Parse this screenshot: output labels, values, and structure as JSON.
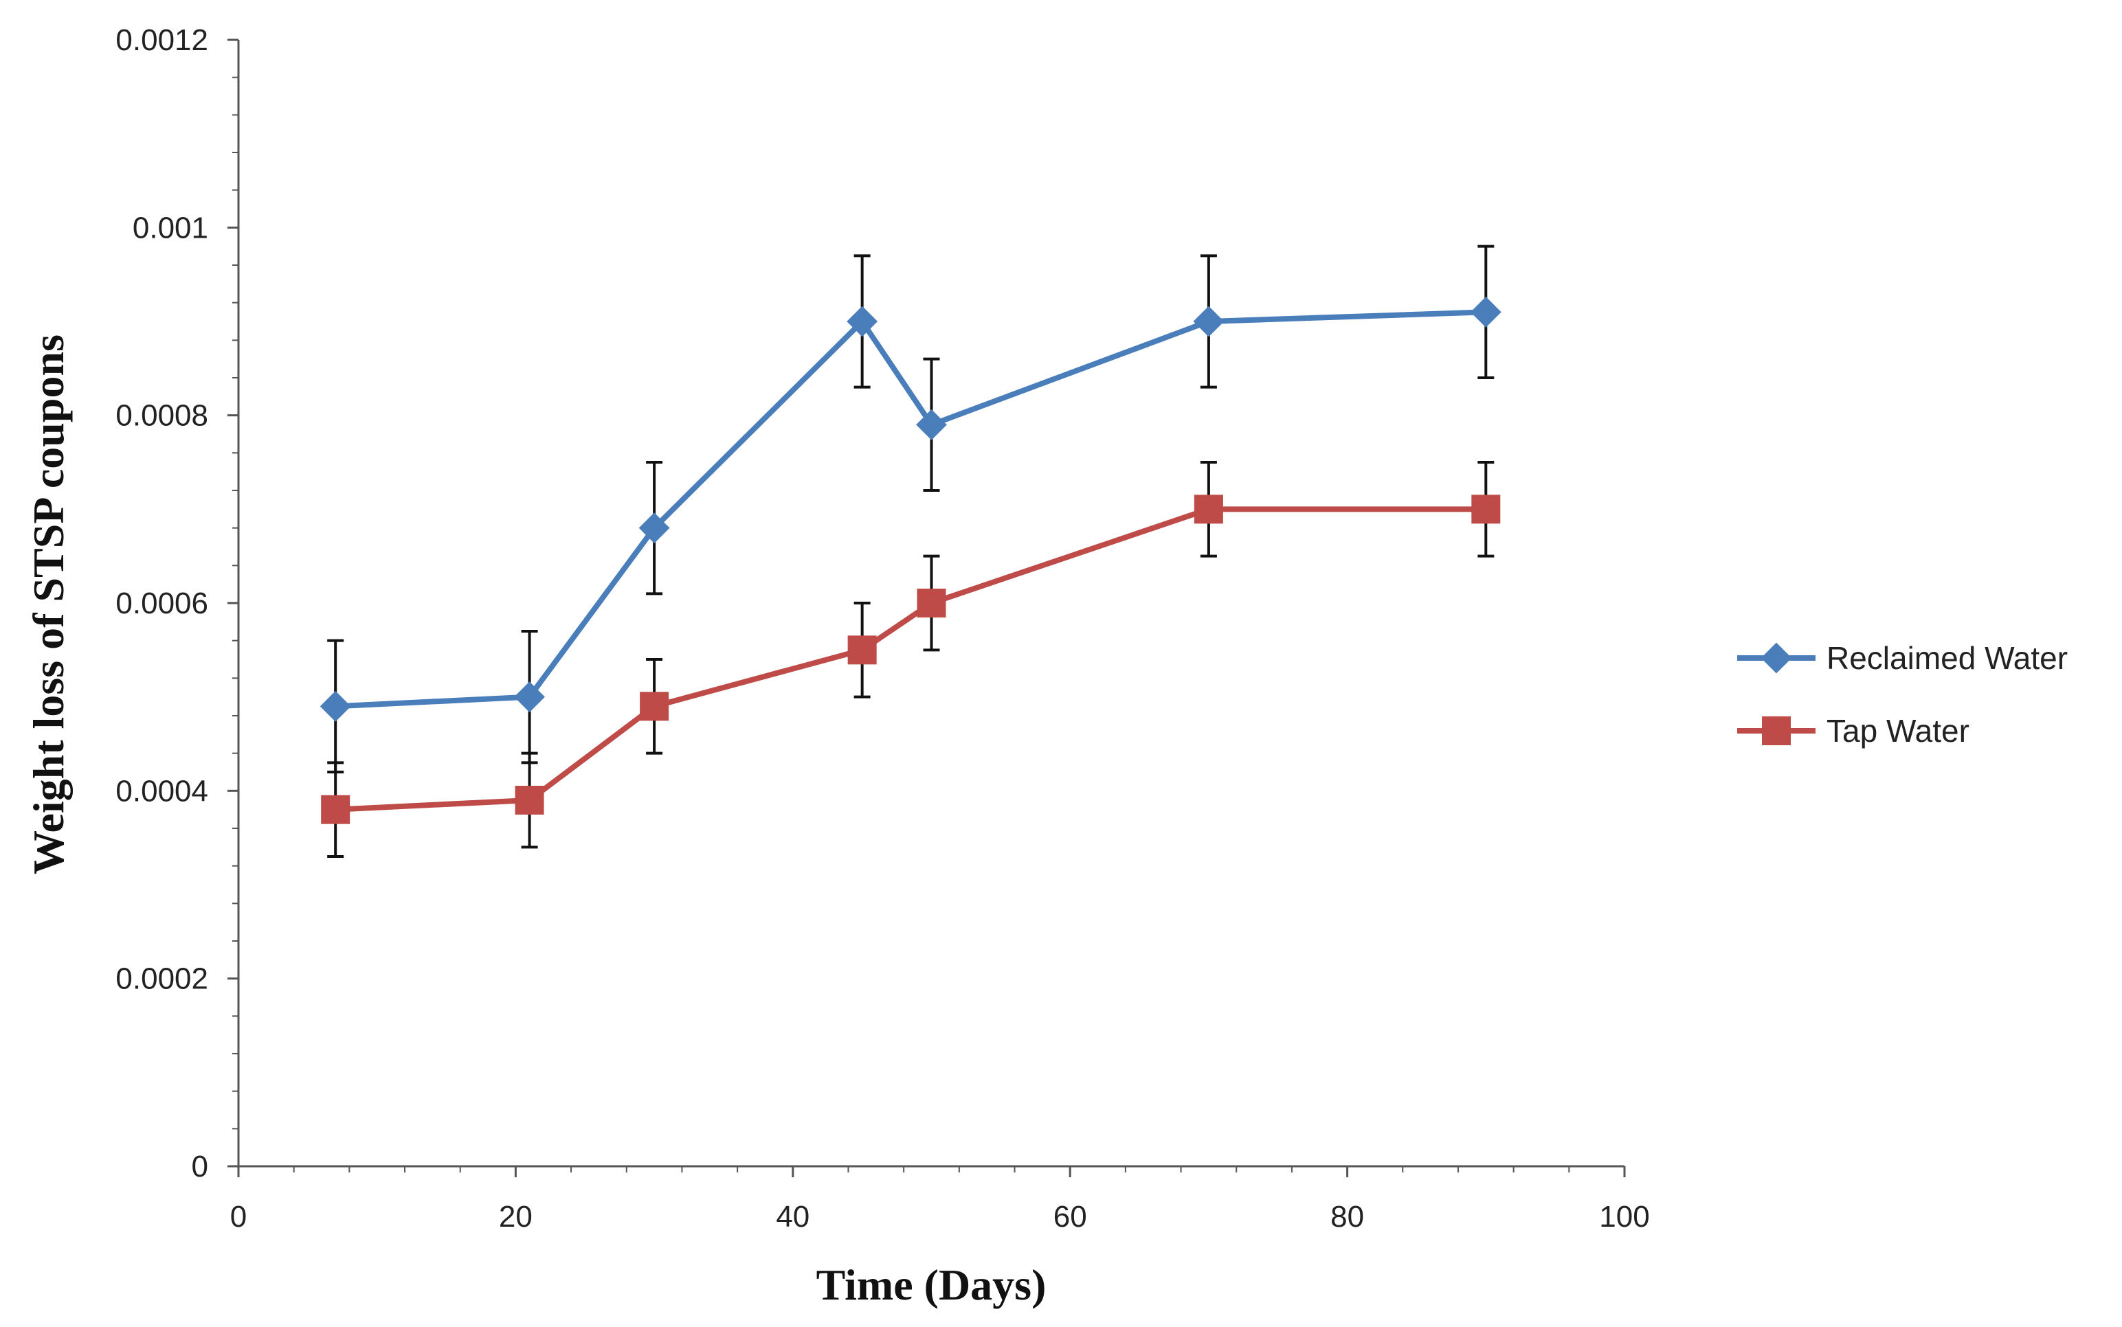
{
  "chart_data": {
    "type": "line",
    "title": "",
    "xlabel": "Time (Days)",
    "ylabel": "Weight loss of STSP coupons",
    "xlim": [
      0,
      100
    ],
    "ylim": [
      0,
      0.0012
    ],
    "x_ticks": [
      0,
      20,
      40,
      60,
      80,
      100
    ],
    "x_tick_labels": [
      "0",
      "20",
      "40",
      "60",
      "80",
      "100"
    ],
    "y_ticks": [
      0,
      0.0002,
      0.0004,
      0.0006,
      0.0008,
      0.001,
      0.0012
    ],
    "y_tick_labels": [
      "0",
      "0.0002",
      "0.0004",
      "0.0006",
      "0.0008",
      "0.001",
      "0.0012"
    ],
    "grid": false,
    "legend_position": "right",
    "series": [
      {
        "name": "Reclaimed Water",
        "color": "#4A7EBB",
        "marker": "diamond",
        "x": [
          7,
          21,
          30,
          45,
          50,
          70,
          90
        ],
        "y": [
          0.00049,
          0.0005,
          0.00068,
          0.0009,
          0.00079,
          0.0009,
          0.00091
        ],
        "error": [
          7e-05,
          7e-05,
          7e-05,
          7e-05,
          7e-05,
          7e-05,
          7e-05
        ]
      },
      {
        "name": "Tap Water",
        "color": "#BE4B48",
        "marker": "square",
        "x": [
          7,
          21,
          30,
          45,
          50,
          70,
          90
        ],
        "y": [
          0.00038,
          0.00039,
          0.00049,
          0.00055,
          0.0006,
          0.0007,
          0.0007
        ],
        "error": [
          5e-05,
          5e-05,
          5e-05,
          5e-05,
          5e-05,
          5e-05,
          5e-05
        ]
      }
    ]
  }
}
